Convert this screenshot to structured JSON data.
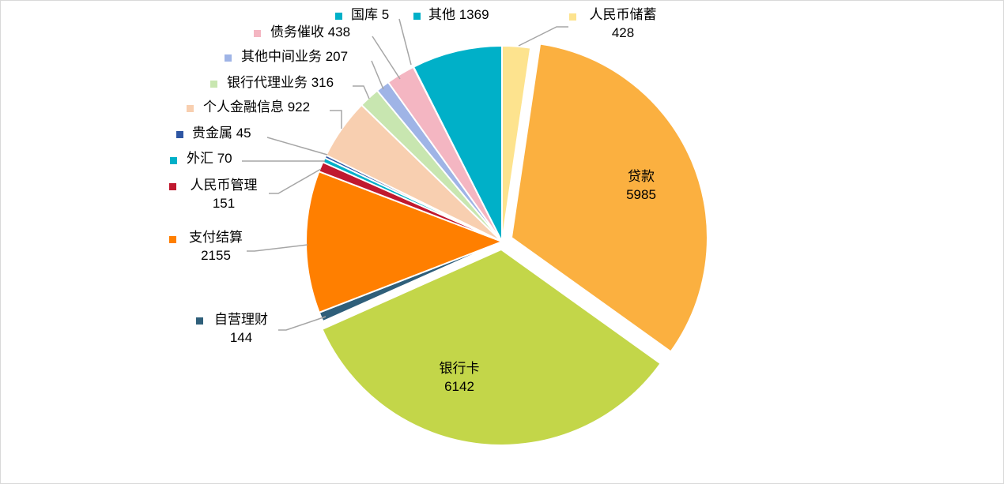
{
  "chart_data": {
    "type": "pie",
    "title": "",
    "series": [
      {
        "name": "人民币储蓄",
        "value": 428,
        "color": "#fde38e"
      },
      {
        "name": "贷款",
        "value": 5985,
        "color": "#fbb040"
      },
      {
        "name": "银行卡",
        "value": 6142,
        "color": "#c3d649"
      },
      {
        "name": "自营理财",
        "value": 144,
        "color": "#2f5f7a"
      },
      {
        "name": "支付结算",
        "value": 2155,
        "color": "#ff7f00"
      },
      {
        "name": "人民币管理",
        "value": 151,
        "color": "#c0192f"
      },
      {
        "name": "外汇",
        "value": 70,
        "color": "#00b0c8"
      },
      {
        "name": "贵金属",
        "value": 45,
        "color": "#2e56a3"
      },
      {
        "name": "个人金融信息",
        "value": 922,
        "color": "#f8cfb0"
      },
      {
        "name": "银行代理业务",
        "value": 316,
        "color": "#c8e6b0"
      },
      {
        "name": "其他中间业务",
        "value": 207,
        "color": "#9fb4e6"
      },
      {
        "name": "债务催收",
        "value": 438,
        "color": "#f4b6c2"
      },
      {
        "name": "国库",
        "value": 5,
        "color": "#00b0c8"
      },
      {
        "name": "其他",
        "value": 1369,
        "color": "#00b0c8"
      }
    ],
    "legend": "data-labels"
  }
}
